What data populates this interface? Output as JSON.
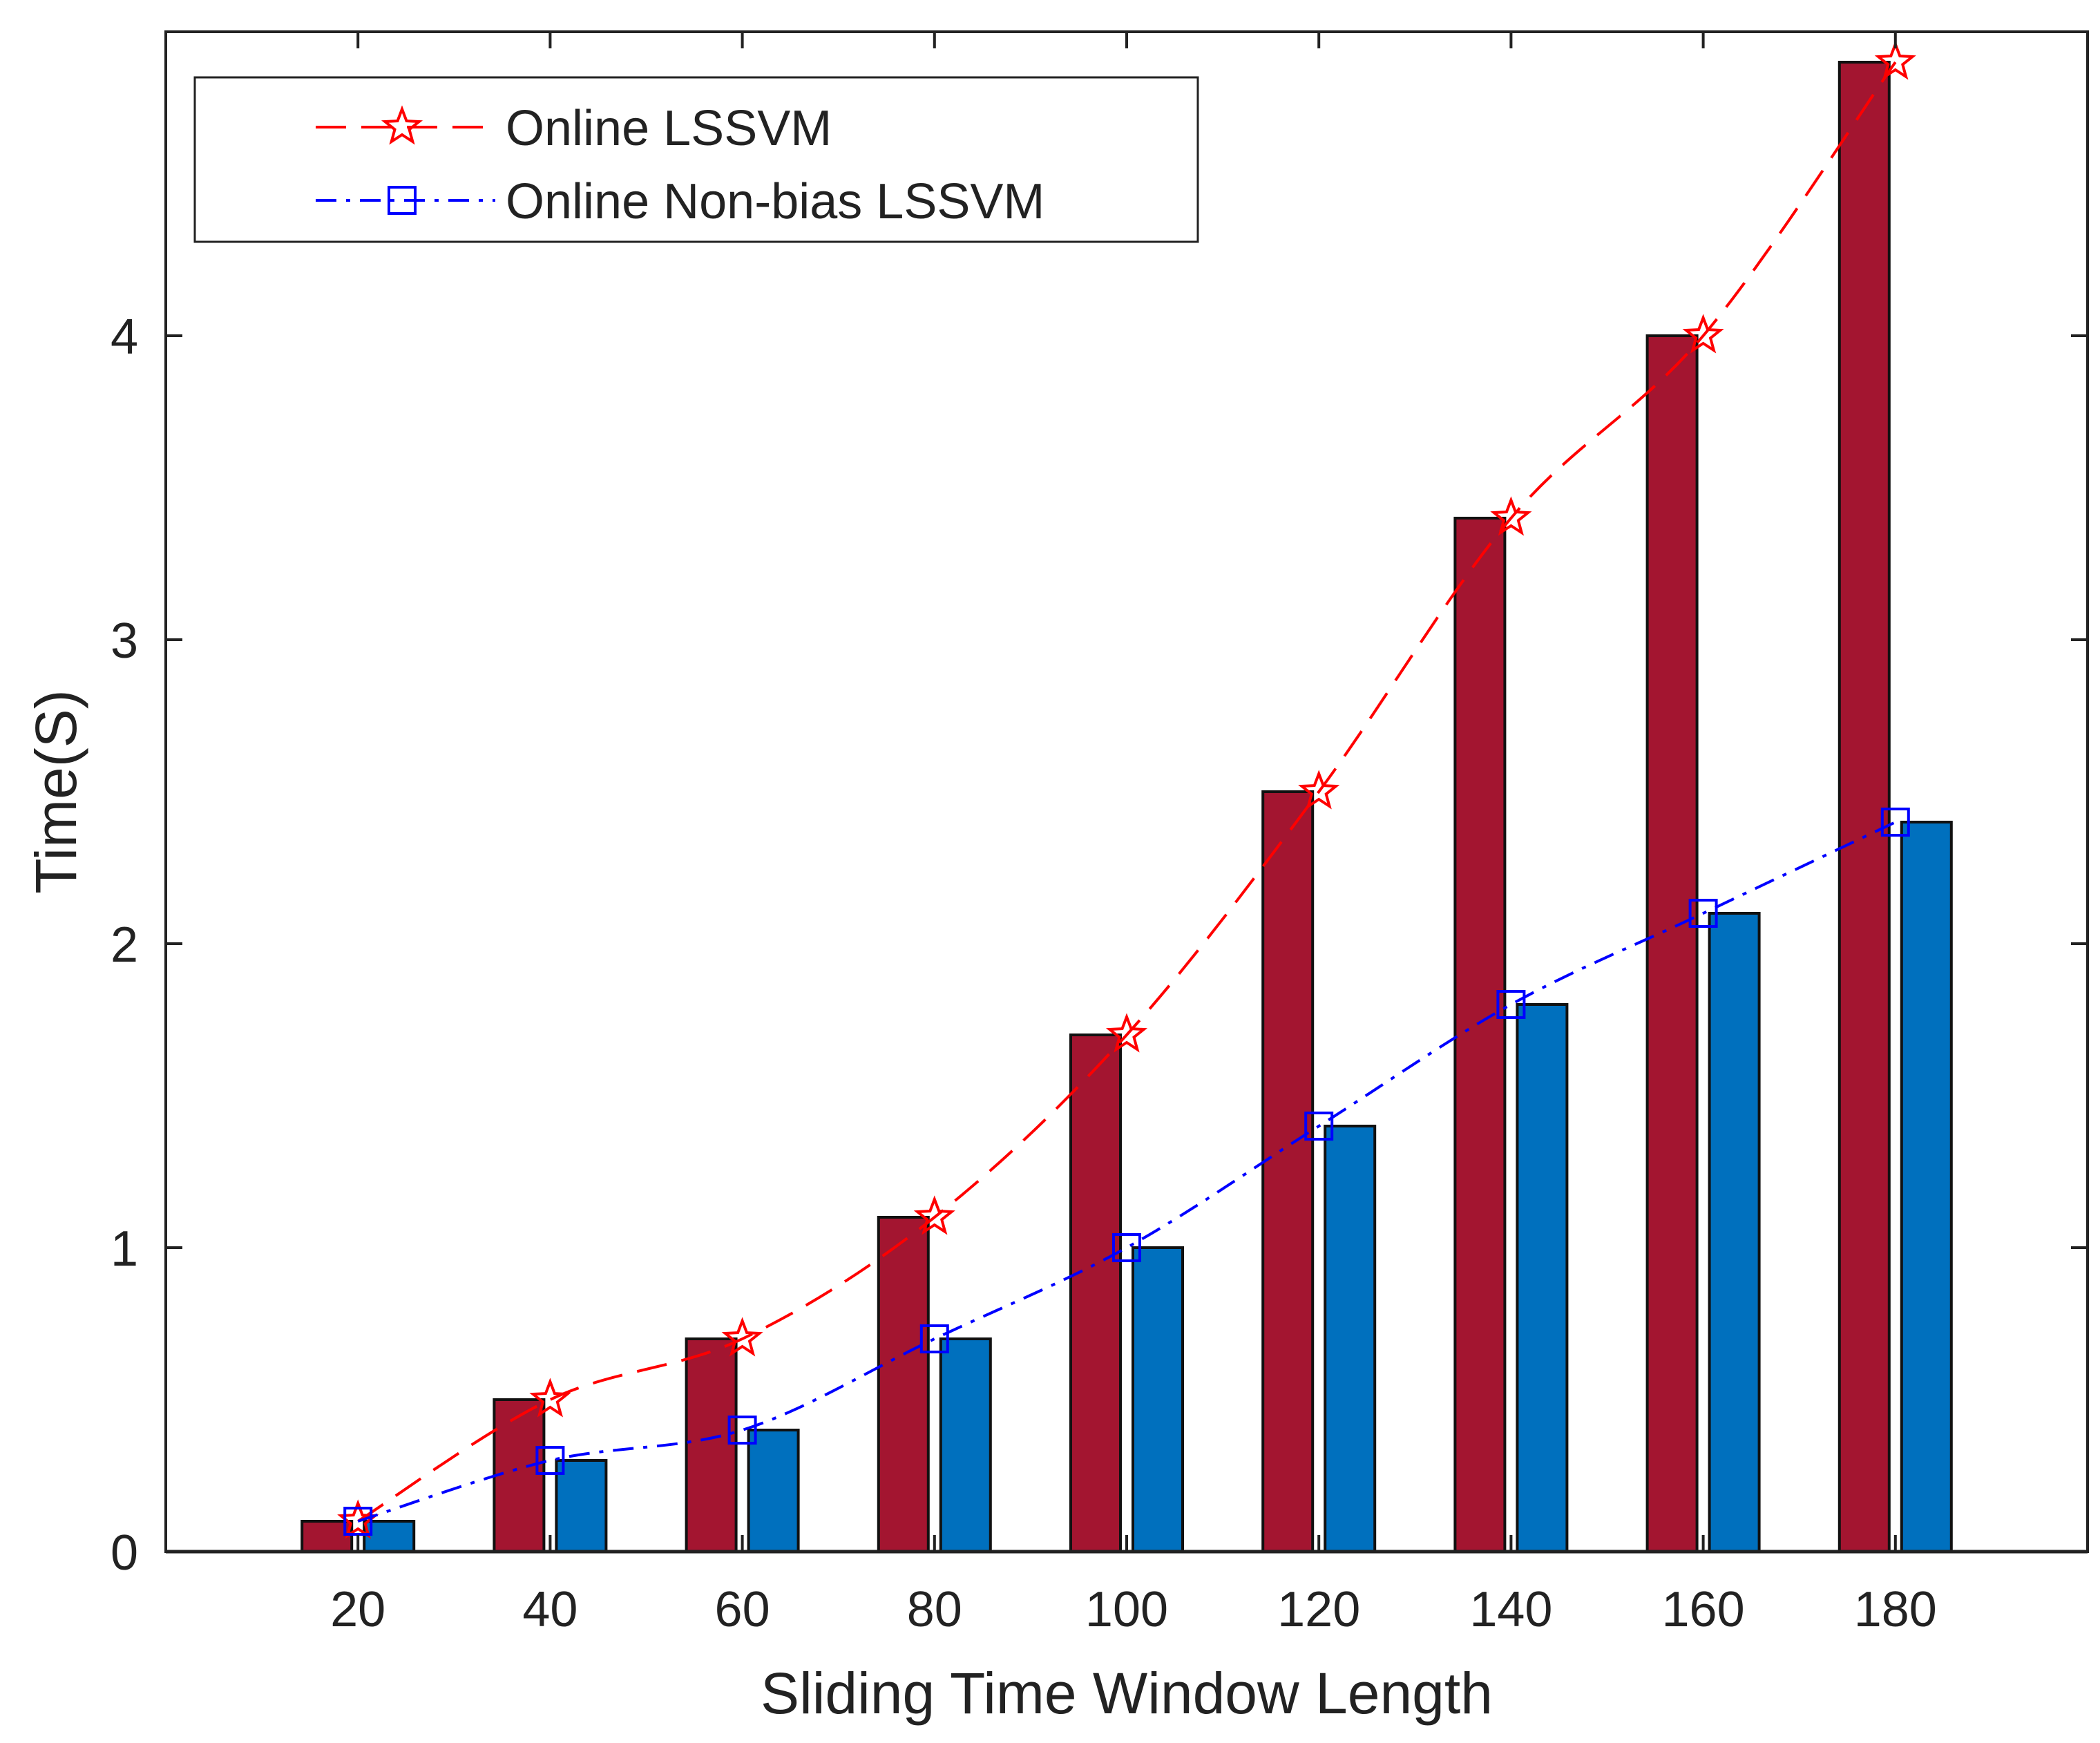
{
  "chart_data": {
    "type": "bar",
    "title": "",
    "xlabel": "Sliding Time Window Length",
    "ylabel": "Time(S)",
    "categories": [
      "20",
      "40",
      "60",
      "80",
      "100",
      "120",
      "140",
      "160",
      "180"
    ],
    "xlim": [
      0,
      200
    ],
    "ylim": [
      0,
      5
    ],
    "yticks": [
      0,
      1,
      2,
      3,
      4
    ],
    "grid": false,
    "legend_position": "top-left",
    "series": [
      {
        "name": "Online LSSVM",
        "bar_color": "#a31530",
        "line_color": "#ff0000",
        "marker": "star",
        "line_style": "dashed",
        "values": [
          0.1,
          0.5,
          0.7,
          1.1,
          1.7,
          2.5,
          3.4,
          4.0,
          4.9
        ]
      },
      {
        "name": "Online Non-bias LSSVM",
        "bar_color": "#0070be",
        "line_color": "#0000ff",
        "marker": "square",
        "line_style": "dash-dot",
        "values": [
          0.1,
          0.3,
          0.4,
          0.7,
          1.0,
          1.4,
          1.8,
          2.1,
          2.4
        ]
      }
    ]
  }
}
